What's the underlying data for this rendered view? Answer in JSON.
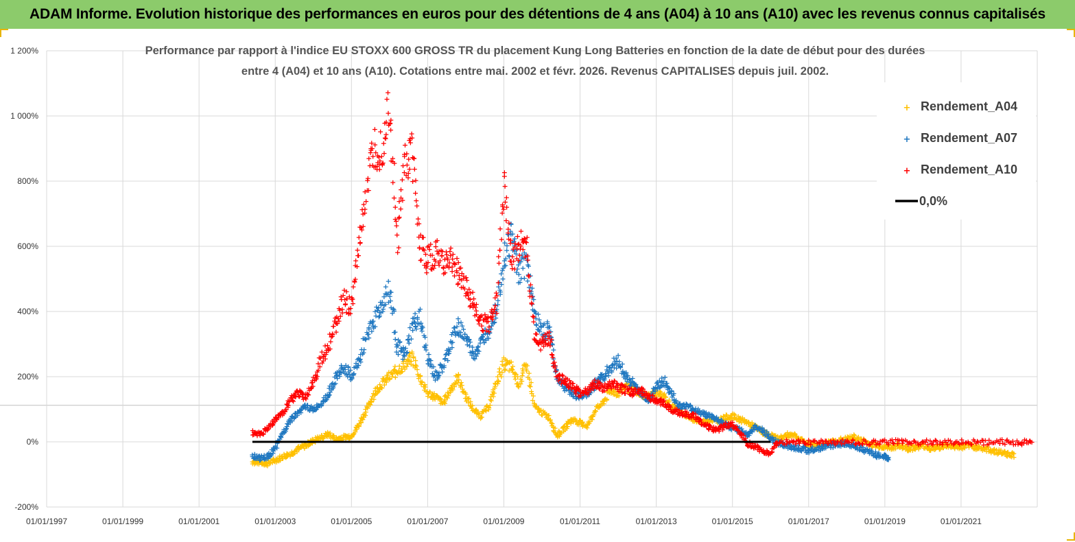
{
  "banner": {
    "title": "ADAM Informe. Evolution historique des performances en euros pour des détentions de 4 ans (A04) à 10 ans (A10) avec les revenus connus capitalisés"
  },
  "colors": {
    "banner_bg": "#8ccb6b",
    "A04": "#ffc000",
    "A07": "#1f77c0",
    "A10": "#ff0000",
    "zero_line": "#000000",
    "grid": "#d9d9d9"
  },
  "chart_data": {
    "type": "scatter",
    "title_lines": [
      "Performance par rapport à l'indice EU STOXX 600 GROSS TR  du placement Kung Long Batteries  en fonction de la date de début pour des durées",
      "entre 4 (A04) et 10 ans (A10). Cotations entre mai. 2002 et févr. 2026. Revenus CAPITALISES depuis juil. 2002."
    ],
    "x_ticks": [
      "01/01/1997",
      "01/01/1999",
      "01/01/2001",
      "01/01/2003",
      "01/01/2005",
      "01/01/2007",
      "01/01/2009",
      "01/01/2011",
      "01/01/2013",
      "01/01/2015",
      "01/01/2017",
      "01/01/2019",
      "01/01/2021"
    ],
    "x_range": [
      1997.0,
      2023.0
    ],
    "y_ticks": [
      "-200%",
      "0%",
      "200%",
      "400%",
      "600%",
      "800%",
      "1 000%",
      "1 200%"
    ],
    "y_range": [
      -200,
      1200
    ],
    "legend_position": "top-right",
    "series": [
      {
        "name": "Rendement_A04",
        "color": "#ffc000",
        "points": [
          [
            2002.4,
            -60
          ],
          [
            2002.6,
            -62
          ],
          [
            2002.8,
            -65
          ],
          [
            2003.0,
            -55
          ],
          [
            2003.2,
            -45
          ],
          [
            2003.4,
            -35
          ],
          [
            2003.6,
            -20
          ],
          [
            2003.8,
            -10
          ],
          [
            2004.0,
            5
          ],
          [
            2004.2,
            15
          ],
          [
            2004.4,
            25
          ],
          [
            2004.6,
            10
          ],
          [
            2004.8,
            15
          ],
          [
            2005.0,
            20
          ],
          [
            2005.2,
            55
          ],
          [
            2005.4,
            100
          ],
          [
            2005.6,
            150
          ],
          [
            2005.8,
            180
          ],
          [
            2006.0,
            200
          ],
          [
            2006.2,
            220
          ],
          [
            2006.4,
            240
          ],
          [
            2006.6,
            260
          ],
          [
            2006.8,
            200
          ],
          [
            2007.0,
            150
          ],
          [
            2007.2,
            140
          ],
          [
            2007.4,
            120
          ],
          [
            2007.6,
            160
          ],
          [
            2007.8,
            200
          ],
          [
            2008.0,
            140
          ],
          [
            2008.2,
            100
          ],
          [
            2008.4,
            80
          ],
          [
            2008.6,
            110
          ],
          [
            2008.8,
            180
          ],
          [
            2009.0,
            240
          ],
          [
            2009.2,
            230
          ],
          [
            2009.4,
            180
          ],
          [
            2009.6,
            240
          ],
          [
            2009.8,
            110
          ],
          [
            2010.0,
            90
          ],
          [
            2010.2,
            75
          ],
          [
            2010.4,
            20
          ],
          [
            2010.6,
            45
          ],
          [
            2010.8,
            70
          ],
          [
            2011.0,
            60
          ],
          [
            2011.2,
            50
          ],
          [
            2011.4,
            100
          ],
          [
            2011.6,
            120
          ],
          [
            2011.8,
            160
          ],
          [
            2012.0,
            150
          ],
          [
            2012.2,
            170
          ],
          [
            2012.4,
            160
          ],
          [
            2012.6,
            150
          ],
          [
            2012.8,
            140
          ],
          [
            2013.0,
            150
          ],
          [
            2013.2,
            140
          ],
          [
            2013.4,
            110
          ],
          [
            2013.6,
            100
          ],
          [
            2013.8,
            80
          ],
          [
            2014.0,
            70
          ],
          [
            2014.2,
            60
          ],
          [
            2014.4,
            70
          ],
          [
            2014.6,
            65
          ],
          [
            2014.8,
            75
          ],
          [
            2015.0,
            80
          ],
          [
            2015.2,
            70
          ],
          [
            2015.4,
            60
          ],
          [
            2015.6,
            45
          ],
          [
            2015.8,
            30
          ],
          [
            2016.0,
            20
          ],
          [
            2016.2,
            10
          ],
          [
            2016.4,
            20
          ],
          [
            2016.6,
            25
          ],
          [
            2016.8,
            5
          ],
          [
            2017.0,
            -5
          ],
          [
            2017.2,
            -10
          ],
          [
            2017.4,
            -5
          ],
          [
            2017.6,
            0
          ],
          [
            2017.8,
            5
          ],
          [
            2018.0,
            10
          ],
          [
            2018.2,
            15
          ],
          [
            2018.4,
            5
          ],
          [
            2018.6,
            -5
          ],
          [
            2018.8,
            -10
          ],
          [
            2019.0,
            -15
          ],
          [
            2019.2,
            -15
          ],
          [
            2019.4,
            -10
          ],
          [
            2019.6,
            -20
          ],
          [
            2019.8,
            -15
          ],
          [
            2020.0,
            -10
          ],
          [
            2020.2,
            -20
          ],
          [
            2020.4,
            -15
          ],
          [
            2020.6,
            -10
          ],
          [
            2020.8,
            -12
          ],
          [
            2021.0,
            -15
          ],
          [
            2021.2,
            -10
          ],
          [
            2021.4,
            -15
          ],
          [
            2021.6,
            -20
          ],
          [
            2021.8,
            -25
          ],
          [
            2022.0,
            -30
          ],
          [
            2022.2,
            -35
          ],
          [
            2022.4,
            -40
          ]
        ]
      },
      {
        "name": "Rendement_A07",
        "color": "#1f77c0",
        "points": [
          [
            2002.4,
            -40
          ],
          [
            2002.6,
            -50
          ],
          [
            2002.8,
            -45
          ],
          [
            2003.0,
            -20
          ],
          [
            2003.2,
            30
          ],
          [
            2003.4,
            70
          ],
          [
            2003.6,
            90
          ],
          [
            2003.8,
            110
          ],
          [
            2004.0,
            100
          ],
          [
            2004.2,
            120
          ],
          [
            2004.4,
            150
          ],
          [
            2004.6,
            200
          ],
          [
            2004.8,
            230
          ],
          [
            2005.0,
            200
          ],
          [
            2005.2,
            250
          ],
          [
            2005.4,
            330
          ],
          [
            2005.6,
            380
          ],
          [
            2005.8,
            420
          ],
          [
            2006.0,
            470
          ],
          [
            2006.2,
            300
          ],
          [
            2006.4,
            260
          ],
          [
            2006.6,
            360
          ],
          [
            2006.8,
            380
          ],
          [
            2007.0,
            260
          ],
          [
            2007.2,
            200
          ],
          [
            2007.4,
            230
          ],
          [
            2007.6,
            300
          ],
          [
            2007.8,
            360
          ],
          [
            2008.0,
            320
          ],
          [
            2008.2,
            270
          ],
          [
            2008.4,
            300
          ],
          [
            2008.6,
            350
          ],
          [
            2008.8,
            420
          ],
          [
            2009.0,
            560
          ],
          [
            2009.2,
            640
          ],
          [
            2009.4,
            520
          ],
          [
            2009.6,
            560
          ],
          [
            2009.8,
            400
          ],
          [
            2010.0,
            330
          ],
          [
            2010.2,
            350
          ],
          [
            2010.4,
            200
          ],
          [
            2010.6,
            170
          ],
          [
            2010.8,
            150
          ],
          [
            2011.0,
            140
          ],
          [
            2011.2,
            150
          ],
          [
            2011.4,
            180
          ],
          [
            2011.6,
            200
          ],
          [
            2011.8,
            230
          ],
          [
            2012.0,
            250
          ],
          [
            2012.2,
            200
          ],
          [
            2012.4,
            180
          ],
          [
            2012.6,
            150
          ],
          [
            2012.8,
            130
          ],
          [
            2013.0,
            170
          ],
          [
            2013.2,
            190
          ],
          [
            2013.4,
            150
          ],
          [
            2013.6,
            110
          ],
          [
            2013.8,
            110
          ],
          [
            2014.0,
            100
          ],
          [
            2014.2,
            90
          ],
          [
            2014.4,
            80
          ],
          [
            2014.6,
            70
          ],
          [
            2014.8,
            55
          ],
          [
            2015.0,
            40
          ],
          [
            2015.2,
            40
          ],
          [
            2015.4,
            20
          ],
          [
            2015.6,
            50
          ],
          [
            2015.8,
            35
          ],
          [
            2016.0,
            10
          ],
          [
            2016.2,
            0
          ],
          [
            2016.4,
            -10
          ],
          [
            2016.6,
            -15
          ],
          [
            2016.8,
            -20
          ],
          [
            2017.0,
            -25
          ],
          [
            2017.2,
            -20
          ],
          [
            2017.4,
            -15
          ],
          [
            2017.6,
            -10
          ],
          [
            2017.8,
            -5
          ],
          [
            2018.0,
            -5
          ],
          [
            2018.2,
            -10
          ],
          [
            2018.4,
            -20
          ],
          [
            2018.6,
            -30
          ],
          [
            2018.8,
            -40
          ],
          [
            2019.0,
            -45
          ],
          [
            2019.1,
            -50
          ]
        ]
      },
      {
        "name": "Rendement_A10",
        "color": "#ff0000",
        "points": [
          [
            2002.4,
            30
          ],
          [
            2002.6,
            25
          ],
          [
            2002.8,
            40
          ],
          [
            2003.0,
            70
          ],
          [
            2003.2,
            90
          ],
          [
            2003.4,
            130
          ],
          [
            2003.6,
            150
          ],
          [
            2003.8,
            140
          ],
          [
            2004.0,
            180
          ],
          [
            2004.2,
            250
          ],
          [
            2004.4,
            300
          ],
          [
            2004.6,
            360
          ],
          [
            2004.8,
            440
          ],
          [
            2005.0,
            410
          ],
          [
            2005.2,
            600
          ],
          [
            2005.4,
            780
          ],
          [
            2005.6,
            900
          ],
          [
            2005.8,
            900
          ],
          [
            2006.0,
            1050
          ],
          [
            2006.2,
            600
          ],
          [
            2006.4,
            860
          ],
          [
            2006.6,
            880
          ],
          [
            2006.8,
            600
          ],
          [
            2007.0,
            560
          ],
          [
            2007.2,
            580
          ],
          [
            2007.4,
            550
          ],
          [
            2007.6,
            560
          ],
          [
            2007.8,
            520
          ],
          [
            2008.0,
            480
          ],
          [
            2008.2,
            420
          ],
          [
            2008.4,
            370
          ],
          [
            2008.6,
            360
          ],
          [
            2008.8,
            430
          ],
          [
            2009.0,
            800
          ],
          [
            2009.2,
            560
          ],
          [
            2009.4,
            600
          ],
          [
            2009.6,
            600
          ],
          [
            2009.8,
            330
          ],
          [
            2010.0,
            300
          ],
          [
            2010.2,
            320
          ],
          [
            2010.4,
            200
          ],
          [
            2010.6,
            190
          ],
          [
            2010.8,
            170
          ],
          [
            2011.0,
            150
          ],
          [
            2011.2,
            160
          ],
          [
            2011.4,
            180
          ],
          [
            2011.6,
            160
          ],
          [
            2011.8,
            180
          ],
          [
            2012.0,
            170
          ],
          [
            2012.2,
            160
          ],
          [
            2012.4,
            150
          ],
          [
            2012.6,
            160
          ],
          [
            2012.8,
            140
          ],
          [
            2013.0,
            130
          ],
          [
            2013.2,
            120
          ],
          [
            2013.4,
            100
          ],
          [
            2013.6,
            90
          ],
          [
            2013.8,
            85
          ],
          [
            2014.0,
            80
          ],
          [
            2014.2,
            60
          ],
          [
            2014.4,
            45
          ],
          [
            2014.6,
            35
          ],
          [
            2014.8,
            50
          ],
          [
            2015.0,
            55
          ],
          [
            2015.2,
            30
          ],
          [
            2015.4,
            -5
          ],
          [
            2015.6,
            -15
          ],
          [
            2015.8,
            -25
          ],
          [
            2016.0,
            -35
          ],
          [
            2016.2,
            0
          ],
          [
            2016.6,
            0
          ],
          [
            2017.0,
            0
          ],
          [
            2017.5,
            0
          ],
          [
            2018.0,
            0
          ],
          [
            2018.5,
            0
          ],
          [
            2019.0,
            0
          ],
          [
            2019.5,
            0
          ],
          [
            2020.0,
            0
          ],
          [
            2020.5,
            0
          ],
          [
            2021.0,
            0
          ],
          [
            2021.5,
            0
          ],
          [
            2022.0,
            0
          ],
          [
            2022.5,
            0
          ],
          [
            2022.9,
            0
          ]
        ]
      },
      {
        "name": "0,0%",
        "color": "#000000",
        "points": [
          [
            2002.4,
            0
          ],
          [
            2016.0,
            0
          ]
        ]
      }
    ]
  }
}
